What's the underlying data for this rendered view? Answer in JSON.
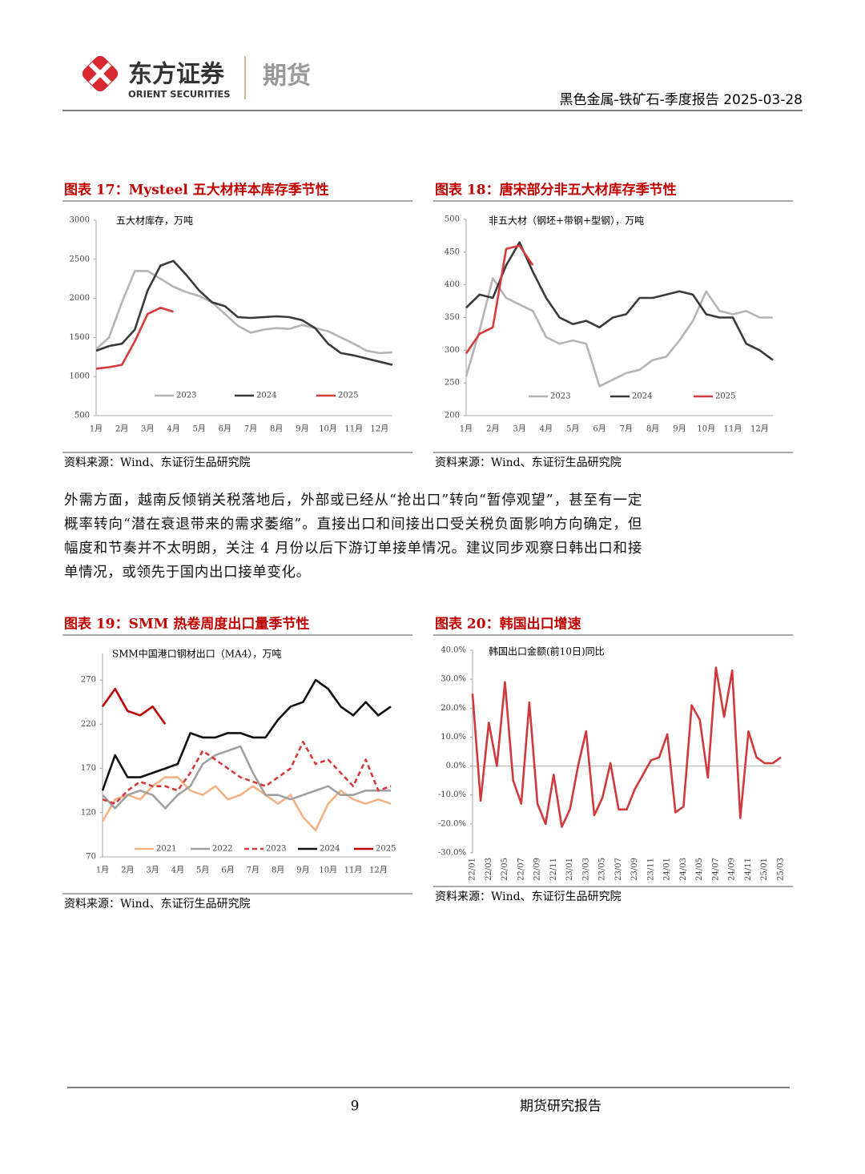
{
  "header": {
    "brand_cn": "东方证券",
    "brand_en": "ORIENT SECURITIES",
    "division": "期货",
    "report": "黑色金属-铁矿石-季度报告 2025-03-28"
  },
  "chart_data": [
    {
      "type": "line",
      "title": "图表 17：Mysteel 五大材样本库存季节性",
      "subtitle": "五大材库存，万吨",
      "source": "资料来源：Wind、东证衍生品研究院",
      "categories": [
        "1月",
        null,
        "2月",
        null,
        "3月",
        null,
        "4月",
        null,
        "5月",
        null,
        "6月",
        null,
        "7月",
        null,
        "8月",
        null,
        "9月",
        null,
        "10月",
        null,
        "11月",
        null,
        "12月",
        null
      ],
      "ylim": [
        500,
        3000
      ],
      "yticks": [
        500,
        1000,
        1500,
        2000,
        2500,
        3000
      ],
      "legend": "bottom",
      "series": [
        {
          "name": "2023",
          "color": "#b4b4b4",
          "values": [
            1350,
            1500,
            1950,
            2350,
            2350,
            2250,
            2150,
            2080,
            2030,
            1950,
            1800,
            1650,
            1560,
            1600,
            1620,
            1610,
            1660,
            1620,
            1580,
            1500,
            1420,
            1330,
            1300,
            1310
          ]
        },
        {
          "name": "2024",
          "color": "#3a3a3a",
          "values": [
            1330,
            1390,
            1420,
            1600,
            2100,
            2420,
            2480,
            2300,
            2100,
            1950,
            1900,
            1760,
            1750,
            1760,
            1770,
            1760,
            1720,
            1620,
            1420,
            1300,
            1270,
            1230,
            1190,
            1150
          ]
        },
        {
          "name": "2025",
          "color": "#d63a3a",
          "values": [
            1100,
            1120,
            1150,
            1450,
            1800,
            1880,
            1830,
            null,
            null,
            null,
            null,
            null,
            null,
            null,
            null,
            null,
            null,
            null,
            null,
            null,
            null,
            null,
            null,
            null
          ]
        }
      ]
    },
    {
      "type": "line",
      "title": "图表 18：唐宋部分非五大材库存季节性",
      "subtitle": "非五大材（钢坯+带钢+型钢），万吨",
      "source": "资料来源：Wind、东证衍生品研究院",
      "categories": [
        "1月",
        null,
        "2月",
        null,
        "3月",
        null,
        "4月",
        null,
        "5月",
        null,
        "6月",
        null,
        "7月",
        null,
        "8月",
        null,
        "9月",
        null,
        "10月",
        null,
        "11月",
        null,
        "12月",
        null
      ],
      "ylim": [
        200,
        500
      ],
      "yticks": [
        200,
        250,
        300,
        350,
        400,
        450,
        500
      ],
      "legend": "bottom",
      "series": [
        {
          "name": "2023",
          "color": "#b4b4b4",
          "values": [
            260,
            330,
            410,
            380,
            370,
            360,
            320,
            310,
            315,
            310,
            245,
            255,
            265,
            270,
            285,
            290,
            315,
            345,
            390,
            360,
            355,
            360,
            350,
            350
          ]
        },
        {
          "name": "2024",
          "color": "#3a3a3a",
          "values": [
            365,
            385,
            380,
            430,
            465,
            420,
            380,
            350,
            340,
            345,
            335,
            350,
            355,
            380,
            380,
            385,
            390,
            385,
            355,
            350,
            350,
            310,
            300,
            285
          ]
        },
        {
          "name": "2025",
          "color": "#d63a3a",
          "values": [
            295,
            325,
            335,
            455,
            460,
            430,
            null,
            null,
            null,
            null,
            null,
            null,
            null,
            null,
            null,
            null,
            null,
            null,
            null,
            null,
            null,
            null,
            null,
            null
          ]
        }
      ]
    },
    {
      "type": "line",
      "title": "图表 19：SMM 热卷周度出口量季节性",
      "subtitle": "SMM中国港口钢材出口（MA4），万吨",
      "source": "资料来源：Wind、东证衍生品研究院",
      "categories": [
        "1月",
        null,
        "2月",
        null,
        "3月",
        null,
        "4月",
        null,
        "5月",
        null,
        "6月",
        null,
        "7月",
        null,
        "8月",
        null,
        "9月",
        null,
        "10月",
        null,
        "11月",
        null,
        "12月",
        null
      ],
      "ylim": [
        70,
        300
      ],
      "yticks": [
        70,
        120,
        170,
        220,
        270
      ],
      "legend": "bottom",
      "series": [
        {
          "name": "2021",
          "color": "#f4b183",
          "values": [
            110,
            135,
            140,
            135,
            150,
            160,
            160,
            145,
            140,
            150,
            135,
            140,
            150,
            140,
            130,
            140,
            115,
            100,
            130,
            145,
            135,
            130,
            135,
            130
          ]
        },
        {
          "name": "2022",
          "color": "#a0a0a0",
          "values": [
            140,
            125,
            140,
            145,
            140,
            125,
            140,
            150,
            175,
            185,
            190,
            195,
            165,
            140,
            140,
            135,
            140,
            145,
            150,
            140,
            140,
            145,
            145,
            145
          ]
        },
        {
          "name": "2023",
          "color": "#d63a3a",
          "style": "dashed",
          "values": [
            135,
            130,
            145,
            155,
            150,
            150,
            145,
            165,
            190,
            180,
            170,
            160,
            155,
            150,
            160,
            170,
            200,
            175,
            180,
            165,
            150,
            180,
            145,
            150
          ]
        },
        {
          "name": "2024",
          "color": "#111111",
          "values": [
            145,
            185,
            160,
            160,
            165,
            170,
            175,
            210,
            205,
            205,
            210,
            210,
            205,
            205,
            225,
            240,
            245,
            270,
            260,
            240,
            230,
            245,
            230,
            240
          ]
        },
        {
          "name": "2025",
          "color": "#c00000",
          "values": [
            240,
            260,
            235,
            230,
            240,
            220,
            null,
            null,
            null,
            null,
            null,
            null,
            null,
            null,
            null,
            null,
            null,
            null,
            null,
            null,
            null,
            null,
            null,
            null
          ]
        }
      ]
    },
    {
      "type": "line",
      "title": "图表 20：韩国出口增速",
      "subtitle": "韩国出口金额(前10日)同比",
      "source": "资料来源：Wind、东证衍生品研究院",
      "categories": [
        "22/01",
        null,
        "22/03",
        null,
        "22/05",
        null,
        "22/07",
        null,
        "22/09",
        null,
        "22/11",
        null,
        "23/01",
        null,
        "23/03",
        null,
        "23/05",
        null,
        "23/07",
        null,
        "23/09",
        null,
        "23/11",
        null,
        "24/01",
        null,
        "24/03",
        null,
        "24/05",
        null,
        "24/07",
        null,
        "24/09",
        null,
        "24/11",
        null,
        "25/01",
        null,
        "25/03"
      ],
      "ylim": [
        -30,
        40
      ],
      "yticks": [
        {
          "value": -30,
          "label": "-30.0%"
        },
        {
          "value": -20,
          "label": "-20.0%"
        },
        {
          "value": -10,
          "label": "-10.0%"
        },
        {
          "value": 0,
          "label": "0.0%"
        },
        {
          "value": 10,
          "label": "10.0%"
        },
        {
          "value": 20,
          "label": "20.0%"
        },
        {
          "value": 30,
          "label": "30.0%"
        },
        {
          "value": 40,
          "label": "40.0%"
        }
      ],
      "color": "#d0393b",
      "values": [
        25,
        -12,
        15,
        0,
        29,
        -5,
        -13,
        22,
        -13,
        -20,
        -3,
        -21,
        -15,
        0,
        12,
        -17,
        -11,
        1,
        -15,
        -15,
        -8,
        -3,
        2,
        3,
        11,
        -16,
        -14,
        21,
        16,
        -4,
        34,
        17,
        33,
        -18,
        12,
        3,
        1,
        1,
        3
      ]
    }
  ],
  "paragraph": "外需方面，越南反倾销关税落地后，外部或已经从“抢出口”转向“暂停观望”，甚至有一定概率转向“潜在衰退带来的需求萎缩”。直接出口和间接出口受关税负面影响方向确定，但幅度和节奏并不太明朗，关注 4 月份以后下游订单接单情况。建议同步观察日韩出口和接单情况，或领先于国内出口接单变化。",
  "footer": {
    "page": "9",
    "label": "期货研究报告"
  }
}
